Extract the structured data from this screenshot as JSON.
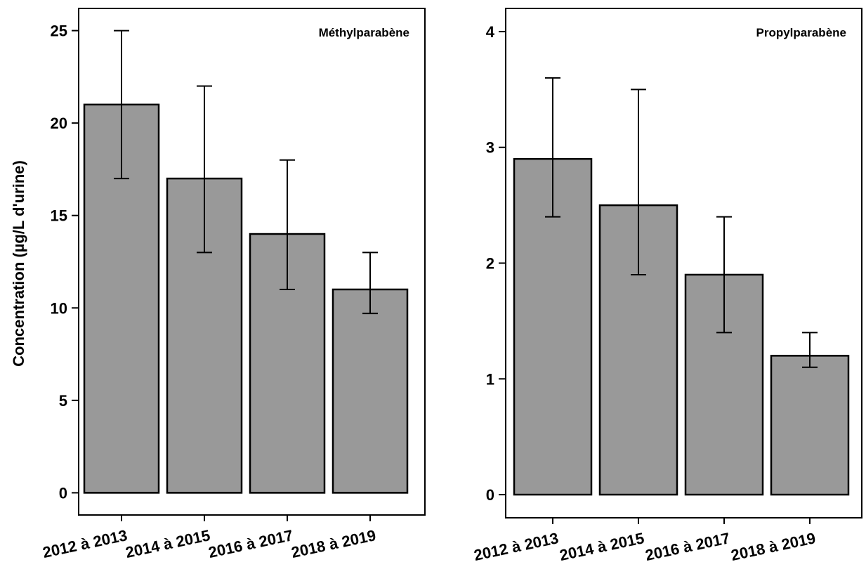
{
  "chart_data": [
    {
      "type": "bar",
      "title": "Méthylparabène",
      "ylabel": "Concentration (µg/L d'urine)",
      "xlabel": "",
      "categories": [
        "2012 à 2013",
        "2014 à 2015",
        "2016 à 2017",
        "2018 à 2019"
      ],
      "values": [
        21,
        17,
        14,
        11
      ],
      "error_low": [
        17,
        13,
        11,
        9.7
      ],
      "error_high": [
        25,
        22,
        18,
        13
      ],
      "ylim": [
        -1.2,
        26.2
      ],
      "yticks": [
        0,
        5,
        10,
        15,
        20,
        25
      ],
      "grid": false,
      "bar_color": "#999999"
    },
    {
      "type": "bar",
      "title": "Propylparabène",
      "ylabel": "",
      "xlabel": "",
      "categories": [
        "2012 à 2013",
        "2014 à 2015",
        "2016 à 2017",
        "2018 à 2019"
      ],
      "values": [
        2.9,
        2.5,
        1.9,
        1.2
      ],
      "error_low": [
        2.4,
        1.9,
        1.4,
        1.1
      ],
      "error_high": [
        3.6,
        3.5,
        2.4,
        1.4
      ],
      "ylim": [
        -0.2,
        4.2
      ],
      "yticks": [
        0,
        1,
        2,
        3,
        4
      ],
      "grid": false,
      "bar_color": "#999999"
    }
  ]
}
